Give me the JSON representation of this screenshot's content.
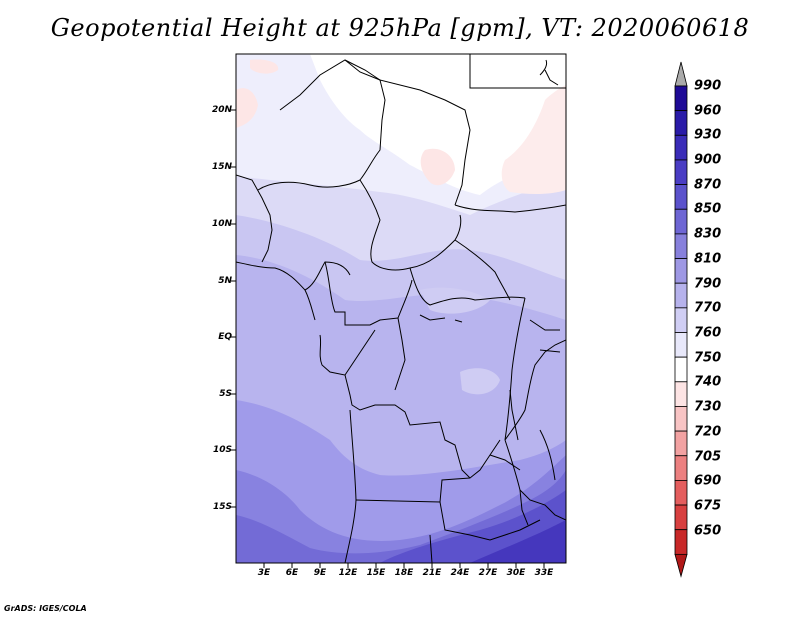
{
  "title": "Geopotential Height at 925hPa [gpm], VT: 2020060618",
  "footer": "GrADS: IGES/COLA",
  "map": {
    "lat_labels": [
      "20N",
      "15N",
      "10N",
      "5N",
      "EQ",
      "5S",
      "10S",
      "15S"
    ],
    "lon_labels": [
      "3E",
      "6E",
      "9E",
      "12E",
      "15E",
      "18E",
      "21E",
      "24E",
      "27E",
      "30E",
      "33E"
    ]
  },
  "colorbar": {
    "levels": [
      "990",
      "960",
      "930",
      "900",
      "870",
      "850",
      "830",
      "810",
      "790",
      "770",
      "760",
      "750",
      "740",
      "730",
      "720",
      "705",
      "690",
      "675",
      "650"
    ],
    "colors": [
      "#1e0a96",
      "#2a1ba8",
      "#3a2cb8",
      "#4a3dc4",
      "#5b52cc",
      "#6e66d4",
      "#8780dc",
      "#9e98e4",
      "#b6b2ec",
      "#d0cef4",
      "#e8e8fa",
      "#ffffff",
      "#fde4e4",
      "#f8c4c4",
      "#f2a2a2",
      "#ec8080",
      "#e45e5e",
      "#d84040",
      "#c82828",
      "#b01818"
    ],
    "top_arrow_color": "#aaaaaa",
    "bottom_arrow_color": "#b01818"
  }
}
